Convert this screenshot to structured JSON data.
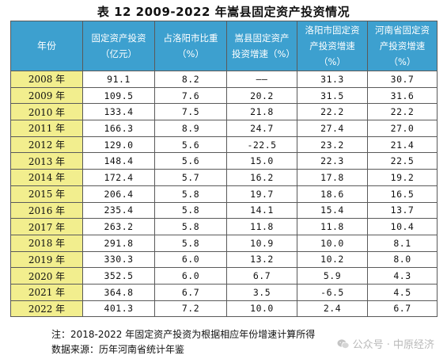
{
  "title": "表 12 2009-2022 年嵩县固定资产投资情况",
  "columns": [
    "年份",
    "固定资产投资（亿元）",
    "占洛阳市比重（%）",
    "嵩县固定资产投资增速（%）",
    "洛阳市固定资产投资增速（%）",
    "河南省固定资产投资增速（%）"
  ],
  "rows": [
    [
      "2008 年",
      "91.1",
      "8.2",
      "——",
      "31.3",
      "30.7"
    ],
    [
      "2009 年",
      "109.5",
      "7.6",
      "20.2",
      "31.5",
      "31.6"
    ],
    [
      "2010 年",
      "133.4",
      "7.5",
      "21.8",
      "22.2",
      "22.2"
    ],
    [
      "2011 年",
      "166.3",
      "8.9",
      "24.7",
      "27.4",
      "27.0"
    ],
    [
      "2012 年",
      "129.0",
      "5.6",
      "-22.5",
      "23.2",
      "21.4"
    ],
    [
      "2013 年",
      "148.4",
      "5.6",
      "15.0",
      "22.3",
      "22.5"
    ],
    [
      "2014 年",
      "172.4",
      "5.7",
      "16.2",
      "17.8",
      "19.2"
    ],
    [
      "2015 年",
      "206.4",
      "5.8",
      "19.7",
      "18.6",
      "16.5"
    ],
    [
      "2016 年",
      "235.4",
      "5.8",
      "14.1",
      "15.4",
      "13.7"
    ],
    [
      "2017 年",
      "263.2",
      "5.8",
      "11.8",
      "11.8",
      "10.4"
    ],
    [
      "2018 年",
      "291.8",
      "5.8",
      "10.9",
      "10.0",
      "8.1"
    ],
    [
      "2019 年",
      "330.3",
      "6.0",
      "13.2",
      "10.2",
      "8.0"
    ],
    [
      "2020 年",
      "352.5",
      "6.0",
      "6.7",
      "5.9",
      "4.3"
    ],
    [
      "2021 年",
      "364.8",
      "6.7",
      "3.5",
      "-6.5",
      "4.5"
    ],
    [
      "2022 年",
      "401.3",
      "7.2",
      "10.0",
      "2.4",
      "6.7"
    ]
  ],
  "note": "注：2018-2022 年固定资产投资为根据相应年份增速计算所得",
  "source": "数据来源：历年河南省统计年鉴",
  "watermark": "公众号 · 中原经济",
  "colors": {
    "header_bg": "#3da0cf",
    "year_bg": "#f2ee8e"
  }
}
